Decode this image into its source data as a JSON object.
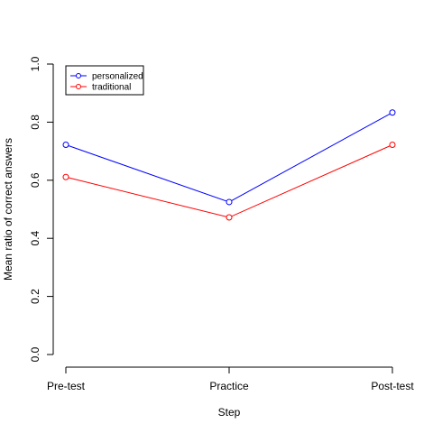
{
  "chart_data": {
    "type": "line",
    "title": "",
    "xlabel": "Step",
    "ylabel": "Mean ratio of correct answers",
    "categories": [
      "Pre-test",
      "Practice",
      "Post-test"
    ],
    "ylim": [
      0,
      1
    ],
    "y_ticks": [
      "0.0",
      "0.2",
      "0.4",
      "0.6",
      "0.8",
      "1.0"
    ],
    "grid": false,
    "legend_position": "top-left",
    "series": [
      {
        "name": "personalized",
        "values": [
          0.722,
          0.525,
          0.833
        ],
        "color": "#0000ff",
        "marker": "circle"
      },
      {
        "name": "traditional",
        "values": [
          0.611,
          0.472,
          0.722
        ],
        "color": "#ff0000",
        "marker": "circle"
      }
    ]
  }
}
